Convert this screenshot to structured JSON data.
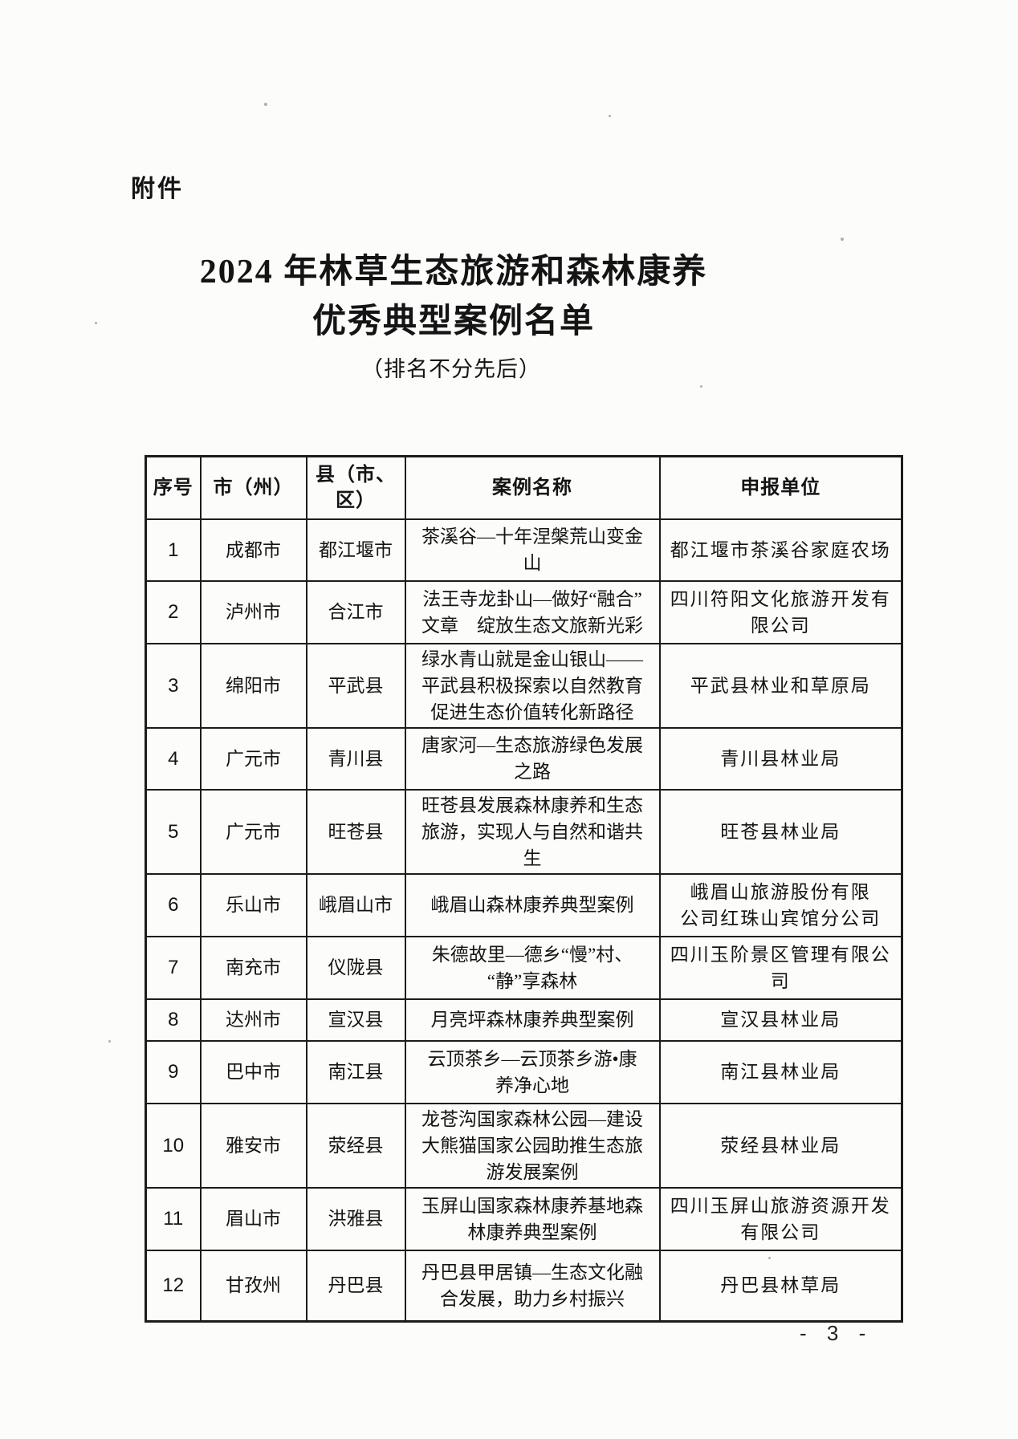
{
  "page": {
    "attachment_label": "附件",
    "title_line1": "2024 年林草生态旅游和森林康养",
    "title_line2": "优秀典型案例名单",
    "subtitle": "（排名不分先后）",
    "page_number": "- 3 -"
  },
  "table": {
    "headers": [
      "序号",
      "市（州）",
      "县（市、\n区）",
      "案例名称",
      "申报单位"
    ],
    "rows": [
      {
        "no": "1",
        "city": "成都市",
        "county": "都江堰市",
        "case_name": "茶溪谷—十年涅槃荒山变金\n山",
        "unit": "都江堰市茶溪谷家庭农场"
      },
      {
        "no": "2",
        "city": "泸州市",
        "county": "合江市",
        "case_name": "法王寺龙卦山—做好“融合”\n文章　绽放生态文旅新光彩",
        "unit": "四川符阳文化旅游开发有\n限公司"
      },
      {
        "no": "3",
        "city": "绵阳市",
        "county": "平武县",
        "case_name": "绿水青山就是金山银山——\n平武县积极探索以自然教育\n促进生态价值转化新路径",
        "unit": "平武县林业和草原局"
      },
      {
        "no": "4",
        "city": "广元市",
        "county": "青川县",
        "case_name": "唐家河—生态旅游绿色发展\n之路",
        "unit": "青川县林业局"
      },
      {
        "no": "5",
        "city": "广元市",
        "county": "旺苍县",
        "case_name": "旺苍县发展森林康养和生态\n旅游，实现人与自然和谐共\n生",
        "unit": "旺苍县林业局"
      },
      {
        "no": "6",
        "city": "乐山市",
        "county": "峨眉山市",
        "case_name": "峨眉山森林康养典型案例",
        "unit": "峨眉山旅游股份有限\n公司红珠山宾馆分公司"
      },
      {
        "no": "7",
        "city": "南充市",
        "county": "仪陇县",
        "case_name": "朱德故里—德乡“慢”村、\n“静”享森林",
        "unit": "四川玉阶景区管理有限公\n司"
      },
      {
        "no": "8",
        "city": "达州市",
        "county": "宣汉县",
        "case_name": "月亮坪森林康养典型案例",
        "unit": "宣汉县林业局"
      },
      {
        "no": "9",
        "city": "巴中市",
        "county": "南江县",
        "case_name": "云顶茶乡—云顶茶乡游•康\n养净心地",
        "unit": "南江县林业局"
      },
      {
        "no": "10",
        "city": "雅安市",
        "county": "荥经县",
        "case_name": "龙苍沟国家森林公园—建设\n大熊猫国家公园助推生态旅\n游发展案例",
        "unit": "荥经县林业局"
      },
      {
        "no": "11",
        "city": "眉山市",
        "county": "洪雅县",
        "case_name": "玉屏山国家森林康养基地森\n林康养典型案例",
        "unit": "四川玉屏山旅游资源开发\n有限公司"
      },
      {
        "no": "12",
        "city": "甘孜州",
        "county": "丹巴县",
        "case_name": "丹巴县甲居镇—生态文化融\n合发展，助力乡村振兴",
        "unit": "丹巴县林草局"
      }
    ]
  }
}
